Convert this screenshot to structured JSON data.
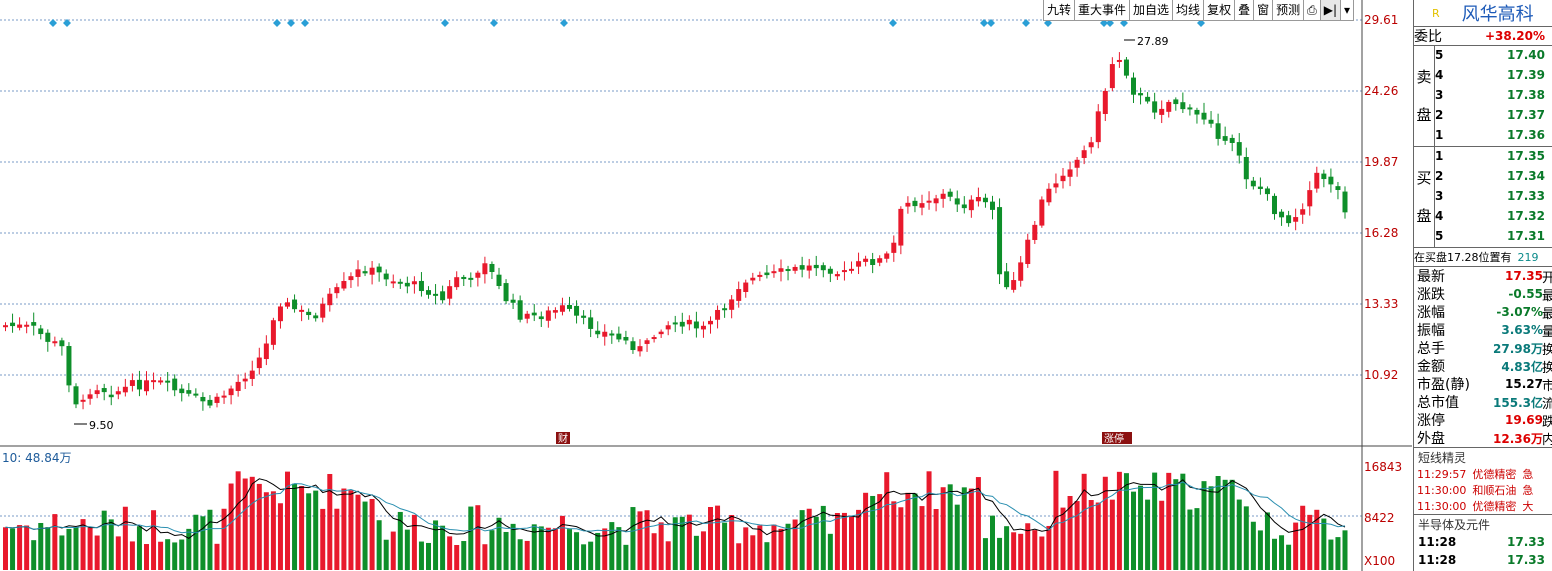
{
  "toolbar": {
    "items": [
      "九转",
      "重大事件",
      "加自选",
      "均线",
      "复权",
      "叠",
      "窗",
      "预测",
      "⎙",
      "▶|",
      "▾"
    ]
  },
  "chart_data": {
    "type": "candlestick",
    "price_axis_ticks": [
      "29.61",
      "24.26",
      "19.87",
      "16.28",
      "13.33",
      "10.92"
    ],
    "volume_axis_ticks": [
      "16843",
      "8422"
    ],
    "volume_unit": "X100",
    "volume_ma_label": "10: 48.84万",
    "annotations": {
      "high": "27.89",
      "low": "9.50",
      "tag1": "财",
      "tag2": "涨停"
    },
    "colors": {
      "up": "#e8192c",
      "down": "#0e8f2a",
      "grid": "#7a9bc7",
      "marker": "#2a9fd6",
      "ma1": "#000000",
      "ma2": "#2a8fb0"
    }
  },
  "panel": {
    "stock_flag": "R",
    "stock_name": "风华高科",
    "weibi_label": "委比",
    "weibi_value": "+38.20%",
    "sell_label_1": "卖",
    "sell_label_2": "盘",
    "buy_label_1": "买",
    "buy_label_2": "盘",
    "sell": [
      {
        "level": "5",
        "price": "17.40"
      },
      {
        "level": "4",
        "price": "17.39"
      },
      {
        "level": "3",
        "price": "17.38"
      },
      {
        "level": "2",
        "price": "17.37"
      },
      {
        "level": "1",
        "price": "17.36"
      }
    ],
    "buy": [
      {
        "level": "1",
        "price": "17.35"
      },
      {
        "level": "2",
        "price": "17.34"
      },
      {
        "level": "3",
        "price": "17.33"
      },
      {
        "level": "4",
        "price": "17.32"
      },
      {
        "level": "5",
        "price": "17.31"
      }
    ],
    "note": "在买盘17.28位置有",
    "note_tail": "219",
    "quotes": [
      {
        "label": "最新",
        "value": "17.35",
        "extra": "开",
        "color": "#d00"
      },
      {
        "label": "涨跌",
        "value": "-0.55",
        "extra": "最",
        "color": "#0a7a2a"
      },
      {
        "label": "涨幅",
        "value": "-3.07%",
        "extra": "最",
        "color": "#0a7a2a"
      },
      {
        "label": "振幅",
        "value": "3.63%",
        "extra": "量",
        "color": "#0a7a7a"
      },
      {
        "label": "总手",
        "value": "27.98万",
        "extra": "换",
        "color": "#0a7a7a"
      },
      {
        "label": "金额",
        "value": "4.83亿",
        "extra": "换",
        "color": "#0a7a7a"
      },
      {
        "label": "市盈(静)",
        "value": "15.27",
        "extra": "市",
        "color": "#000"
      },
      {
        "label": "总市值",
        "value": "155.3亿",
        "extra": "流",
        "color": "#0a7a7a"
      },
      {
        "label": "涨停",
        "value": "19.69",
        "extra": "跌",
        "color": "#d00"
      },
      {
        "label": "外盘",
        "value": "12.36万",
        "extra": "内",
        "color": "#d00"
      }
    ],
    "sprite_title": "短线精灵",
    "events": [
      {
        "time": "11:29:57",
        "name": "优德精密",
        "tag": "急"
      },
      {
        "time": "11:30:00",
        "name": "和顺石油",
        "tag": "急"
      },
      {
        "time": "11:30:00",
        "name": "优德精密",
        "tag": "大"
      }
    ],
    "sector": "半导体及元件",
    "ticks": [
      {
        "time": "11:28",
        "value": "17.33"
      },
      {
        "time": "11:28",
        "value": "17.33"
      }
    ]
  }
}
